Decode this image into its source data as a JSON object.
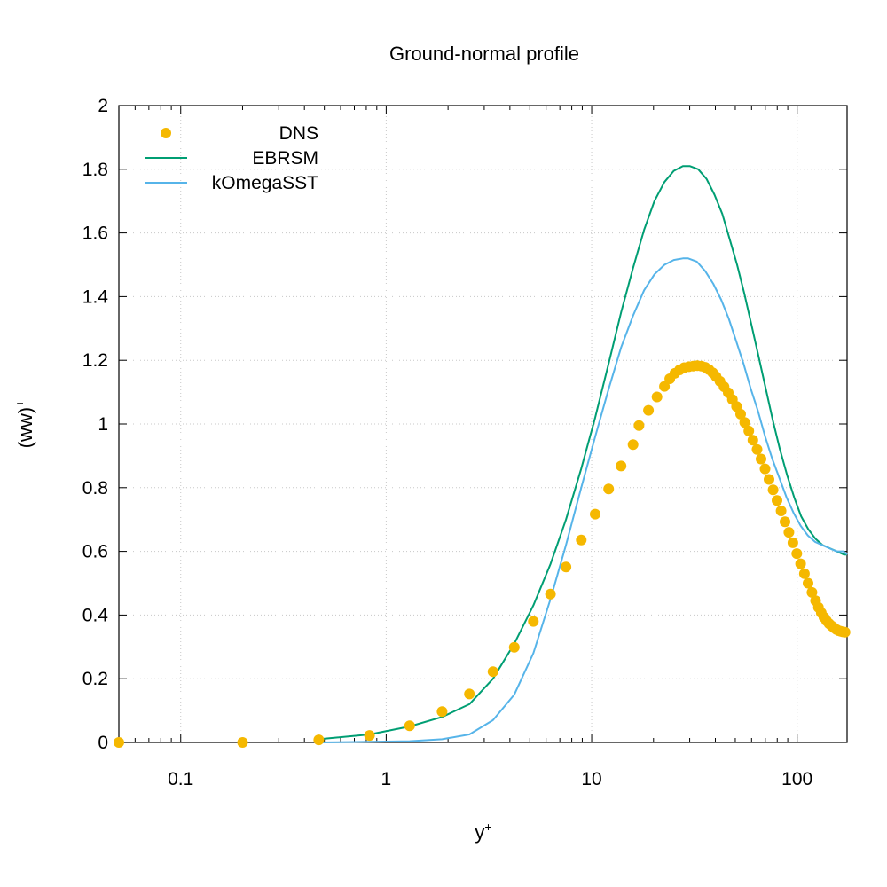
{
  "chart_data": {
    "type": "line",
    "title": "Ground-normal profile",
    "xlabel": "y",
    "xlabel_sup": "+",
    "ylabel": "(ww)",
    "ylabel_sup": "+",
    "xscale": "log",
    "xlim": [
      0.05,
      175
    ],
    "ylim": [
      0,
      2
    ],
    "grid": true,
    "legend": "top-left",
    "x_ticks": [
      0.1,
      1,
      10,
      100
    ],
    "x_tick_labels": [
      "0.1",
      "1",
      "10",
      "100"
    ],
    "y_ticks": [
      0,
      0.2,
      0.4,
      0.6,
      0.8,
      1,
      1.2,
      1.4,
      1.6,
      1.8,
      2
    ],
    "y_tick_labels": [
      "0",
      "0.2",
      "0.4",
      "0.6",
      "0.8",
      "1",
      "1.2",
      "1.4",
      "1.6",
      "1.8",
      "2"
    ],
    "series": [
      {
        "name": "DNS",
        "style": "points",
        "color": "#f5b800",
        "x": [
          0.05,
          0.2,
          0.47,
          0.83,
          1.3,
          1.87,
          2.54,
          3.31,
          4.2,
          5.2,
          6.3,
          7.5,
          8.9,
          10.4,
          12.1,
          13.9,
          15.9,
          17.0,
          18.9,
          20.8,
          22.6,
          24.0,
          25.4,
          26.8,
          28.2,
          29.7,
          31.2,
          32.7,
          34.2,
          35.7,
          37.2,
          38.8,
          40.3,
          42.1,
          44.1,
          46.2,
          48.4,
          50.7,
          53.1,
          55.6,
          58.2,
          60.9,
          63.8,
          66.7,
          69.8,
          73.0,
          76.4,
          79.8,
          83.5,
          87.3,
          91.2,
          95.3,
          99.6,
          104.0,
          108.5,
          113.0,
          118.0,
          123.0,
          127.0,
          131.0,
          135.0,
          139.0,
          143.0,
          147.0,
          151.0,
          155.0,
          159.0,
          163.0,
          167.0,
          171.0
        ],
        "y": [
          0.0,
          0.0,
          0.008,
          0.022,
          0.052,
          0.097,
          0.152,
          0.222,
          0.299,
          0.38,
          0.466,
          0.551,
          0.636,
          0.717,
          0.796,
          0.868,
          0.935,
          0.995,
          1.043,
          1.085,
          1.118,
          1.142,
          1.159,
          1.17,
          1.177,
          1.18,
          1.182,
          1.183,
          1.182,
          1.178,
          1.171,
          1.161,
          1.149,
          1.134,
          1.117,
          1.098,
          1.077,
          1.055,
          1.031,
          1.005,
          0.978,
          0.949,
          0.92,
          0.89,
          0.859,
          0.826,
          0.793,
          0.76,
          0.727,
          0.693,
          0.66,
          0.627,
          0.593,
          0.561,
          0.53,
          0.5,
          0.471,
          0.445,
          0.424,
          0.407,
          0.393,
          0.382,
          0.373,
          0.366,
          0.36,
          0.355,
          0.351,
          0.349,
          0.347,
          0.346
        ]
      },
      {
        "name": "EBRSM",
        "style": "line",
        "color": "#009e73",
        "x": [
          0.47,
          0.83,
          1.3,
          1.87,
          2.54,
          3.31,
          4.2,
          5.2,
          6.3,
          7.5,
          8.9,
          10.4,
          12.1,
          13.9,
          15.9,
          18.0,
          20.2,
          22.6,
          25.1,
          27.8,
          30.0,
          33.0,
          36.2,
          39.6,
          43.2,
          47.0,
          51.0,
          55.3,
          60.0,
          65.0,
          70.4,
          76.2,
          82.5,
          89.3,
          96.7,
          104.6,
          113.2,
          122.6,
          132.8,
          143.8,
          155.8,
          168.8,
          175.0
        ],
        "y": [
          0.01,
          0.025,
          0.05,
          0.08,
          0.12,
          0.2,
          0.31,
          0.43,
          0.56,
          0.7,
          0.86,
          1.02,
          1.19,
          1.35,
          1.49,
          1.61,
          1.7,
          1.76,
          1.795,
          1.81,
          1.81,
          1.8,
          1.77,
          1.72,
          1.66,
          1.58,
          1.5,
          1.41,
          1.31,
          1.21,
          1.11,
          1.01,
          0.92,
          0.84,
          0.77,
          0.71,
          0.67,
          0.64,
          0.62,
          0.61,
          0.6,
          0.59,
          0.59
        ]
      },
      {
        "name": "kOmegaSST",
        "style": "line",
        "color": "#56b4e9",
        "x": [
          0.47,
          0.83,
          1.3,
          1.87,
          2.54,
          3.31,
          4.2,
          5.2,
          6.3,
          7.5,
          8.9,
          10.4,
          12.1,
          13.9,
          15.9,
          18.0,
          20.2,
          22.6,
          25.1,
          27.8,
          29.5,
          32.5,
          35.7,
          39.1,
          42.7,
          46.5,
          50.5,
          54.8,
          59.5,
          64.5,
          69.9,
          75.7,
          82.0,
          88.8,
          96.2,
          104.1,
          112.7,
          122.1,
          132.3,
          143.3,
          155.3,
          168.3,
          175.0
        ],
        "y": [
          0.0,
          0.002,
          0.004,
          0.01,
          0.025,
          0.07,
          0.15,
          0.28,
          0.45,
          0.62,
          0.8,
          0.96,
          1.11,
          1.24,
          1.34,
          1.42,
          1.47,
          1.5,
          1.515,
          1.52,
          1.52,
          1.51,
          1.48,
          1.44,
          1.39,
          1.33,
          1.26,
          1.19,
          1.11,
          1.04,
          0.96,
          0.89,
          0.83,
          0.77,
          0.72,
          0.68,
          0.65,
          0.63,
          0.62,
          0.61,
          0.6,
          0.6,
          0.59
        ]
      }
    ]
  }
}
